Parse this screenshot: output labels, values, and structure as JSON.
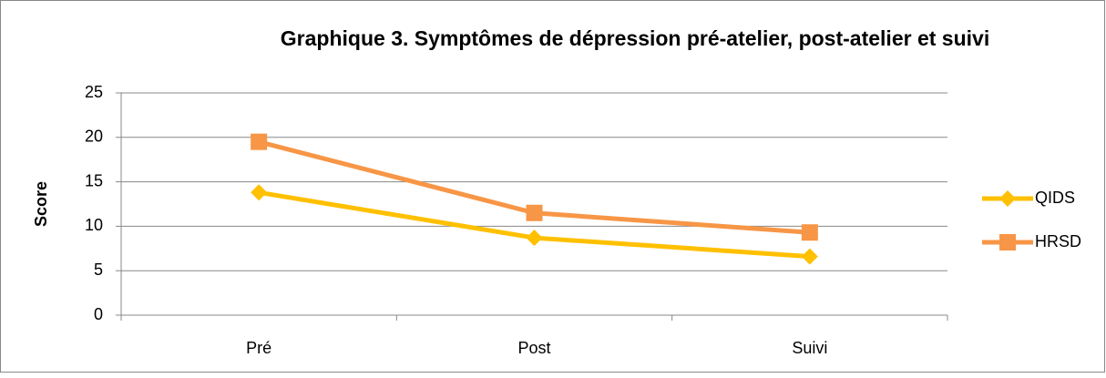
{
  "chart_data": {
    "type": "line",
    "title": "Graphique 3. Symptômes de dépression pré-atelier, post-atelier et suivi",
    "y_label": "Score",
    "categories": [
      "Pré",
      "Post",
      "Suivi"
    ],
    "series": [
      {
        "name": "QIDS",
        "color": "#FFC000",
        "marker": "diamond",
        "values": [
          13.8,
          8.7,
          6.6
        ]
      },
      {
        "name": "HRSD",
        "color": "#F79646",
        "marker": "square",
        "values": [
          19.5,
          11.5,
          9.3
        ]
      }
    ],
    "ylim": [
      0,
      25
    ],
    "yticks": [
      0,
      5,
      10,
      15,
      20,
      25
    ],
    "grid": true,
    "legend": "right"
  }
}
